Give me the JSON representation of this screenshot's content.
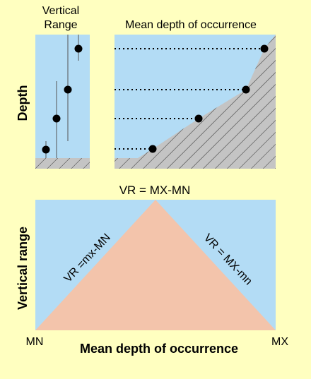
{
  "colors": {
    "background": "#FFFFC0",
    "panel_blue": "#B3DCF5",
    "substrate_grey": "#C4C4C4",
    "triangle_pink": "#F3C4AB",
    "marker": "#000000"
  },
  "top_left_panel": {
    "title_line1": "Vertical",
    "title_line2": "Range",
    "y_axis_label": "Depth"
  },
  "top_right_panel": {
    "title": "Mean depth of occurrence"
  },
  "bottom_panel": {
    "apex_label": "VR = MX-MN",
    "left_edge_label": "VR =mx-MN",
    "right_edge_label": "VR = MX-mn",
    "y_axis_label": "Vertical range",
    "x_axis_label": "Mean depth of occurrence",
    "x_min_label": "MN",
    "x_max_label": "MX"
  }
}
